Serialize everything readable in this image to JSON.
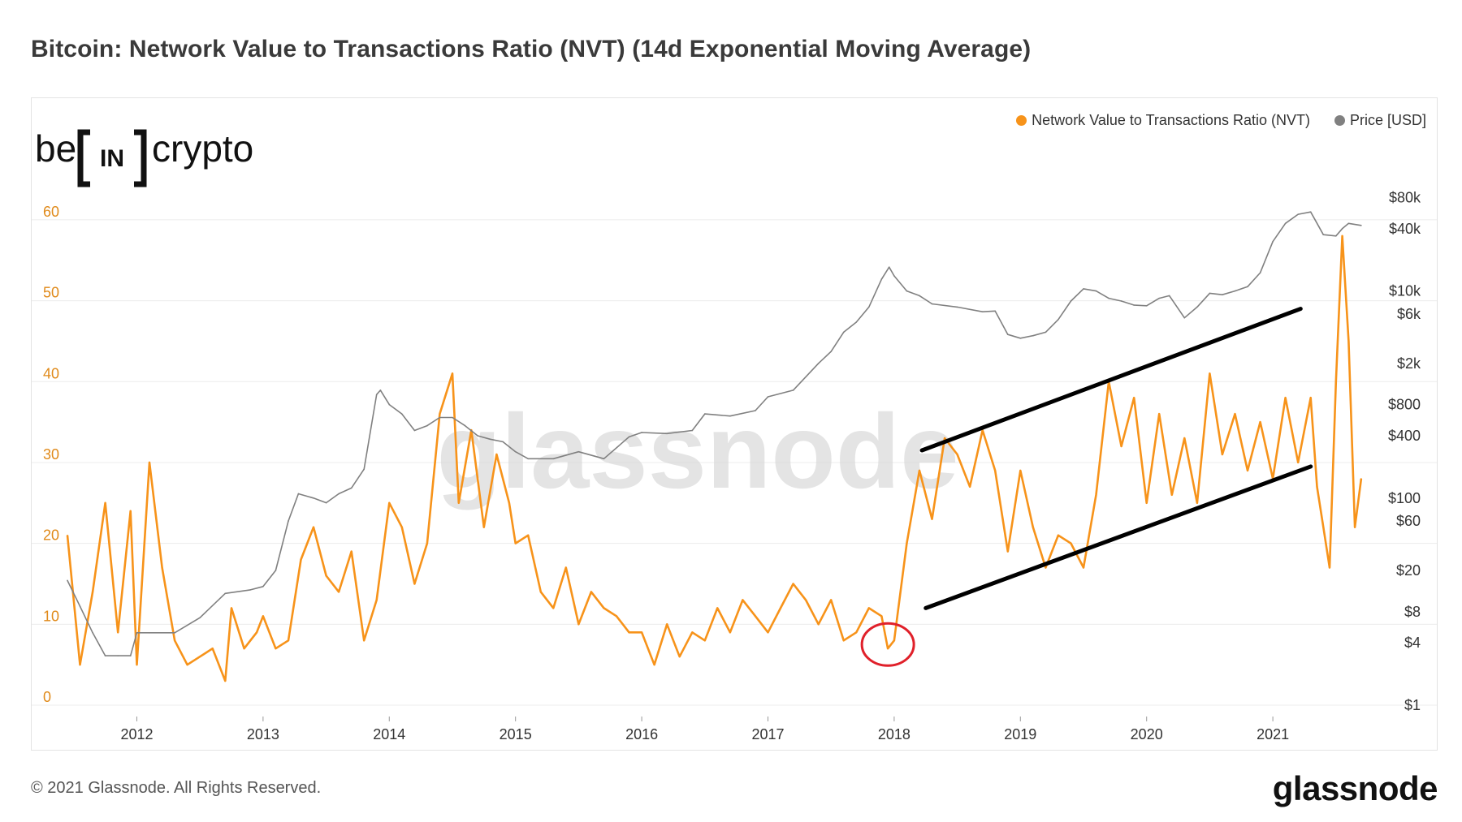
{
  "header": {
    "title": "Bitcoin: Network Value to Transactions Ratio (NVT) (14d Exponential Moving Average)"
  },
  "watermark": {
    "text": "glassnode"
  },
  "badge_logo": {
    "left": "be",
    "middle": "IN",
    "right": "crypto"
  },
  "footer": {
    "copyright": "© 2021 Glassnode. All Rights Reserved.",
    "brand": "glassnode"
  },
  "colors": {
    "nvt": "#f7931a",
    "price": "#808080",
    "axis_left": "#e08a1a",
    "grid": "#ececec",
    "annotation_circle": "#e0202a",
    "channel": "#000000"
  },
  "chart_data": {
    "type": "line",
    "legend": [
      {
        "name": "Network Value to Transactions Ratio (NVT)",
        "color": "#f7931a",
        "placement": "top-right"
      },
      {
        "name": "Price [USD]",
        "color": "#808080",
        "placement": "top-right"
      }
    ],
    "x_ticks": [
      "2012",
      "2013",
      "2014",
      "2015",
      "2016",
      "2017",
      "2018",
      "2019",
      "2020",
      "2021"
    ],
    "x_range": [
      "2011-06",
      "2021-09"
    ],
    "y_left": {
      "ticks": [
        "0",
        "10",
        "20",
        "30",
        "40",
        "50",
        "60"
      ],
      "range": [
        0,
        64
      ]
    },
    "y_right": {
      "scale": "log",
      "ticks": [
        "$1",
        "$4",
        "$8",
        "$20",
        "$60",
        "$100",
        "$400",
        "$800",
        "$2k",
        "$6k",
        "$10k",
        "$40k",
        "$80k"
      ],
      "tick_values": [
        1,
        4,
        8,
        20,
        60,
        100,
        400,
        800,
        2000,
        6000,
        10000,
        40000,
        80000
      ],
      "range": [
        1,
        100000
      ]
    },
    "grid": true,
    "series": [
      {
        "name": "Network Value to Transactions Ratio (NVT)",
        "axis": "left",
        "x": [
          2011.45,
          2011.55,
          2011.65,
          2011.75,
          2011.85,
          2011.95,
          2012.0,
          2012.1,
          2012.2,
          2012.3,
          2012.4,
          2012.5,
          2012.6,
          2012.7,
          2012.75,
          2012.85,
          2012.95,
          2013.0,
          2013.1,
          2013.2,
          2013.3,
          2013.4,
          2013.5,
          2013.6,
          2013.7,
          2013.8,
          2013.9,
          2014.0,
          2014.1,
          2014.2,
          2014.3,
          2014.4,
          2014.5,
          2014.55,
          2014.65,
          2014.75,
          2014.85,
          2014.95,
          2015.0,
          2015.1,
          2015.2,
          2015.3,
          2015.4,
          2015.5,
          2015.6,
          2015.7,
          2015.8,
          2015.9,
          2016.0,
          2016.1,
          2016.2,
          2016.3,
          2016.4,
          2016.5,
          2016.6,
          2016.7,
          2016.8,
          2016.9,
          2017.0,
          2017.1,
          2017.2,
          2017.3,
          2017.4,
          2017.5,
          2017.6,
          2017.7,
          2017.8,
          2017.9,
          2017.95,
          2018.0,
          2018.1,
          2018.2,
          2018.3,
          2018.4,
          2018.5,
          2018.6,
          2018.7,
          2018.8,
          2018.9,
          2019.0,
          2019.1,
          2019.2,
          2019.3,
          2019.4,
          2019.5,
          2019.6,
          2019.7,
          2019.8,
          2019.9,
          2020.0,
          2020.1,
          2020.2,
          2020.3,
          2020.4,
          2020.5,
          2020.6,
          2020.7,
          2020.8,
          2020.9,
          2021.0,
          2021.1,
          2021.2,
          2021.3,
          2021.35,
          2021.4,
          2021.45,
          2021.5,
          2021.55,
          2021.6,
          2021.65,
          2021.7
        ],
        "values": [
          21,
          5,
          14,
          25,
          9,
          24,
          5,
          30,
          17,
          8,
          5,
          6,
          7,
          3,
          12,
          7,
          9,
          11,
          7,
          8,
          18,
          22,
          16,
          14,
          19,
          8,
          13,
          25,
          22,
          15,
          20,
          36,
          41,
          25,
          34,
          22,
          31,
          25,
          20,
          21,
          14,
          12,
          17,
          10,
          14,
          12,
          11,
          9,
          9,
          5,
          10,
          6,
          9,
          8,
          12,
          9,
          13,
          11,
          9,
          12,
          15,
          13,
          10,
          13,
          8,
          9,
          12,
          11,
          7,
          8,
          20,
          29,
          23,
          33,
          31,
          27,
          34,
          29,
          19,
          29,
          22,
          17,
          21,
          20,
          17,
          26,
          40,
          32,
          38,
          25,
          36,
          26,
          33,
          25,
          41,
          31,
          36,
          29,
          35,
          28,
          38,
          30,
          38,
          27,
          22,
          17,
          40,
          58,
          45,
          22,
          28
        ]
      },
      {
        "name": "Price [USD]",
        "axis": "right",
        "x": [
          2011.45,
          2011.55,
          2011.65,
          2011.75,
          2011.85,
          2011.95,
          2012.0,
          2012.1,
          2012.3,
          2012.5,
          2012.7,
          2012.9,
          2013.0,
          2013.1,
          2013.2,
          2013.28,
          2013.4,
          2013.5,
          2013.6,
          2013.7,
          2013.8,
          2013.9,
          2013.93,
          2014.0,
          2014.1,
          2014.2,
          2014.3,
          2014.4,
          2014.5,
          2014.6,
          2014.7,
          2014.8,
          2014.9,
          2015.0,
          2015.1,
          2015.3,
          2015.5,
          2015.7,
          2015.9,
          2016.0,
          2016.2,
          2016.4,
          2016.5,
          2016.7,
          2016.9,
          2017.0,
          2017.2,
          2017.4,
          2017.5,
          2017.6,
          2017.7,
          2017.8,
          2017.9,
          2017.96,
          2018.0,
          2018.1,
          2018.2,
          2018.3,
          2018.5,
          2018.7,
          2018.8,
          2018.9,
          2019.0,
          2019.1,
          2019.2,
          2019.3,
          2019.4,
          2019.5,
          2019.6,
          2019.7,
          2019.8,
          2019.9,
          2020.0,
          2020.1,
          2020.18,
          2020.3,
          2020.4,
          2020.5,
          2020.6,
          2020.7,
          2020.8,
          2020.9,
          2021.0,
          2021.1,
          2021.2,
          2021.3,
          2021.4,
          2021.5,
          2021.55,
          2021.6,
          2021.7
        ],
        "values": [
          16,
          9,
          5,
          3,
          3,
          3,
          5,
          5,
          5,
          7,
          12,
          13,
          14,
          20,
          60,
          110,
          100,
          90,
          110,
          125,
          190,
          1000,
          1100,
          800,
          650,
          450,
          500,
          600,
          600,
          500,
          400,
          370,
          350,
          280,
          240,
          240,
          280,
          240,
          390,
          430,
          420,
          450,
          650,
          620,
          700,
          950,
          1100,
          2000,
          2600,
          4000,
          5000,
          7000,
          13000,
          17000,
          14000,
          10000,
          9000,
          7500,
          7000,
          6300,
          6400,
          3800,
          3500,
          3700,
          4000,
          5300,
          8000,
          10500,
          10000,
          8500,
          8000,
          7300,
          7200,
          8500,
          9000,
          5500,
          7000,
          9500,
          9200,
          10000,
          11000,
          15000,
          30000,
          45000,
          55000,
          58000,
          35000,
          34000,
          40000,
          45000,
          43000
        ]
      }
    ],
    "annotations": [
      {
        "type": "circle",
        "x": 2017.95,
        "y": 7.5,
        "axis": "left",
        "color": "#e0202a"
      },
      {
        "type": "line",
        "from": [
          2018.22,
          31.5
        ],
        "to": [
          2021.22,
          49
        ],
        "axis": "left",
        "color": "#000000"
      },
      {
        "type": "line",
        "from": [
          2018.25,
          12
        ],
        "to": [
          2021.3,
          29.5
        ],
        "axis": "left",
        "color": "#000000"
      }
    ]
  }
}
